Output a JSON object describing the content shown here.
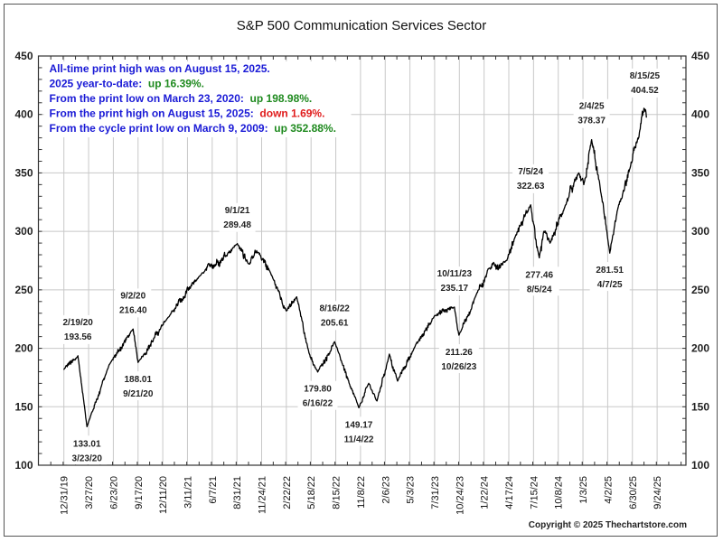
{
  "chart_data": {
    "type": "line",
    "title": "S&P 500 Communication Services Sector",
    "xlabel": "",
    "ylabel": "",
    "ylim": [
      100,
      450
    ],
    "y_ticks": [
      100,
      150,
      200,
      250,
      300,
      350,
      400,
      450
    ],
    "y_tick_labels": [
      "100",
      "150",
      "200",
      "250",
      "300",
      "350",
      "400",
      "450"
    ],
    "y_axis_both_sides": true,
    "grid": true,
    "x_tick_labels": [
      "12/31/19",
      "3/27/20",
      "6/23/20",
      "9/17/20",
      "12/11/20",
      "3/11/21",
      "6/7/21",
      "8/31/21",
      "11/24/21",
      "2/22/22",
      "5/18/22",
      "8/15/22",
      "11/8/22",
      "2/6/23",
      "5/3/23",
      "7/31/23",
      "10/24/23",
      "1/22/24",
      "4/17/24",
      "7/15/24",
      "10/8/24",
      "1/3/25",
      "4/2/25",
      "6/30/25",
      "9/24/25"
    ],
    "trading_days_per_tick": 60,
    "series": [
      {
        "name": "S&P 500 Communication Services Sector",
        "color": "#000000",
        "key_points": [
          {
            "day": 0,
            "date": "12/31/19",
            "value": 182
          },
          {
            "day": 34,
            "date": "2/19/20",
            "value": 193.56
          },
          {
            "day": 56,
            "date": "3/23/20",
            "value": 133.01
          },
          {
            "day": 110,
            "date": "6/8/20",
            "value": 186
          },
          {
            "day": 168,
            "date": "9/2/20",
            "value": 216.4
          },
          {
            "day": 180,
            "date": "9/21/20",
            "value": 188.01
          },
          {
            "day": 252,
            "date": "12/31/20",
            "value": 226
          },
          {
            "day": 330,
            "date": "4/23/21",
            "value": 262
          },
          {
            "day": 421,
            "date": "9/1/21",
            "value": 289.48
          },
          {
            "day": 450,
            "date": "10/12/21",
            "value": 272
          },
          {
            "day": 472,
            "date": "11/10/21",
            "value": 282
          },
          {
            "day": 505,
            "date": "1/3/22",
            "value": 262
          },
          {
            "day": 540,
            "date": "2/24/22",
            "value": 232
          },
          {
            "day": 565,
            "date": "3/29/22",
            "value": 244
          },
          {
            "day": 595,
            "date": "5/12/22",
            "value": 196
          },
          {
            "day": 616,
            "date": "6/16/22",
            "value": 179.8
          },
          {
            "day": 657,
            "date": "8/16/22",
            "value": 205.61
          },
          {
            "day": 716,
            "date": "11/4/22",
            "value": 149.17
          },
          {
            "day": 740,
            "date": "12/1/22",
            "value": 170
          },
          {
            "day": 760,
            "date": "12/28/22",
            "value": 155
          },
          {
            "day": 790,
            "date": "2/2/23",
            "value": 195
          },
          {
            "day": 810,
            "date": "3/13/23",
            "value": 172
          },
          {
            "day": 850,
            "date": "5/10/23",
            "value": 200
          },
          {
            "day": 900,
            "date": "7/19/23",
            "value": 228
          },
          {
            "day": 948,
            "date": "10/11/23",
            "value": 235.17
          },
          {
            "day": 959,
            "date": "10/26/23",
            "value": 211.26
          },
          {
            "day": 1000,
            "date": "12/26/23",
            "value": 245
          },
          {
            "day": 1030,
            "date": "2/9/24",
            "value": 268
          },
          {
            "day": 1075,
            "date": "4/15/24",
            "value": 275
          },
          {
            "day": 1095,
            "date": "5/13/24",
            "value": 295
          },
          {
            "day": 1133,
            "date": "7/5/24",
            "value": 322.63
          },
          {
            "day": 1154,
            "date": "8/5/24",
            "value": 277.46
          },
          {
            "day": 1165,
            "date": "8/20/24",
            "value": 300
          },
          {
            "day": 1180,
            "date": "9/11/24",
            "value": 290
          },
          {
            "day": 1215,
            "date": "10/31/24",
            "value": 320
          },
          {
            "day": 1250,
            "date": "12/17/24",
            "value": 350
          },
          {
            "day": 1262,
            "date": "1/6/25",
            "value": 340
          },
          {
            "day": 1281,
            "date": "2/4/25",
            "value": 378.37
          },
          {
            "day": 1305,
            "date": "3/10/25",
            "value": 330
          },
          {
            "day": 1325,
            "date": "4/7/25",
            "value": 281.51
          },
          {
            "day": 1345,
            "date": "5/6/25",
            "value": 320
          },
          {
            "day": 1375,
            "date": "6/18/25",
            "value": 355
          },
          {
            "day": 1395,
            "date": "7/17/25",
            "value": 380
          },
          {
            "day": 1410,
            "date": "8/15/25",
            "value": 404.52
          },
          {
            "day": 1414,
            "date": "8/21/25",
            "value": 397.7
          }
        ]
      }
    ],
    "annotations": [
      {
        "date": "2/19/20",
        "value": "193.56",
        "day": 34,
        "pos": "above"
      },
      {
        "date": "3/23/20",
        "value": "133.01",
        "day": 56,
        "pos": "below"
      },
      {
        "date": "9/2/20",
        "value": "216.40",
        "day": 168,
        "pos": "above"
      },
      {
        "date": "9/21/20",
        "value": "188.01",
        "day": 180,
        "pos": "below"
      },
      {
        "date": "9/1/21",
        "value": "289.48",
        "day": 421,
        "pos": "above"
      },
      {
        "date": "6/16/22",
        "value": "179.80",
        "day": 616,
        "pos": "below"
      },
      {
        "date": "8/16/22",
        "value": "205.61",
        "day": 657,
        "pos": "above"
      },
      {
        "date": "11/4/22",
        "value": "149.17",
        "day": 716,
        "pos": "below"
      },
      {
        "date": "10/11/23",
        "value": "235.17",
        "day": 948,
        "pos": "above"
      },
      {
        "date": "10/26/23",
        "value": "211.26",
        "day": 959,
        "pos": "below"
      },
      {
        "date": "7/5/24",
        "value": "322.63",
        "day": 1133,
        "pos": "above"
      },
      {
        "date": "8/5/24",
        "value": "277.46",
        "day": 1154,
        "pos": "below"
      },
      {
        "date": "2/4/25",
        "value": "378.37",
        "day": 1281,
        "pos": "above"
      },
      {
        "date": "4/7/25",
        "value": "281.51",
        "day": 1325,
        "pos": "below"
      },
      {
        "date": "8/15/25",
        "value": "404.52",
        "day": 1410,
        "pos": "above"
      }
    ],
    "info_box": [
      {
        "parts": [
          {
            "text": "All-time print high was on August 15, 2025.",
            "color": "#1a1ad6"
          }
        ]
      },
      {
        "parts": [
          {
            "text": "2025 year-to-date:  ",
            "color": "#1a1ad6"
          },
          {
            "text": "up 16.39%.",
            "color": "#1f8a1f"
          }
        ]
      },
      {
        "parts": [
          {
            "text": "From the print low on March 23, 2020:  ",
            "color": "#1a1ad6"
          },
          {
            "text": "up 198.98%.",
            "color": "#1f8a1f"
          }
        ]
      },
      {
        "parts": [
          {
            "text": "From the print high on August 15, 2025:  ",
            "color": "#1a1ad6"
          },
          {
            "text": "down 1.69%.",
            "color": "#e01b1b"
          }
        ]
      },
      {
        "parts": [
          {
            "text": "From the cycle print low on March 9, 2009:  ",
            "color": "#1a1ad6"
          },
          {
            "text": "up 352.88%.",
            "color": "#1f8a1f"
          }
        ]
      }
    ]
  },
  "copyright": "Copyright © 2025 Thechartstore.com"
}
